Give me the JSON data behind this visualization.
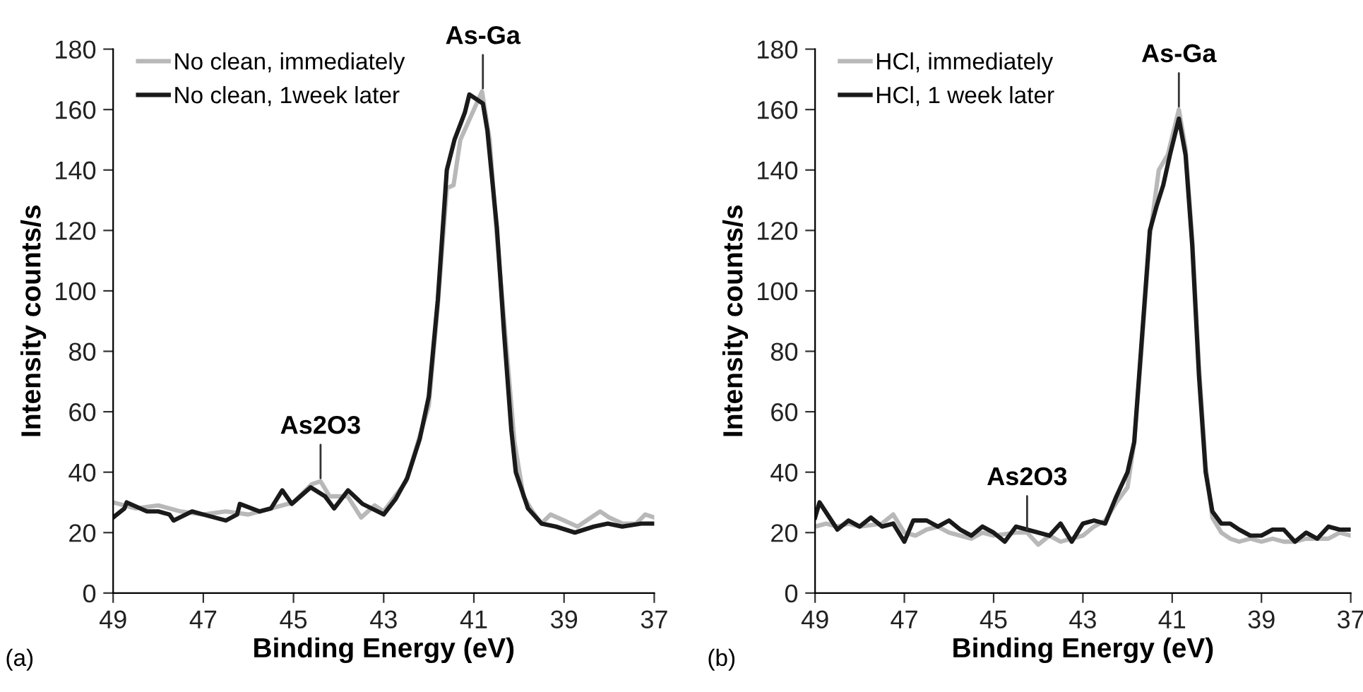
{
  "chart_data": [
    {
      "type": "line",
      "xlabel": "Binding Energy (eV)",
      "ylabel": "Intensity counts/s",
      "xlim": [
        49,
        37
      ],
      "xticks": [
        49,
        47,
        45,
        43,
        41,
        39,
        37
      ],
      "ylim": [
        0,
        180
      ],
      "yticks": [
        0,
        20,
        40,
        60,
        80,
        100,
        120,
        140,
        160,
        180
      ],
      "grid": false,
      "legend": "top left",
      "marker": "none",
      "line_style": "solid",
      "annotations": [
        {
          "text": "As-Ga",
          "x": 40.8,
          "y": 167
        },
        {
          "text": "As2O3",
          "x": 44.4,
          "y": 38
        },
        "(a)"
      ],
      "series": [
        {
          "name": "No clean, immediately",
          "color": "#b8b8b8",
          "x": [
            49,
            48.5,
            48,
            47.5,
            47,
            46.5,
            46,
            45.5,
            45,
            44.6,
            44.4,
            44.2,
            43.8,
            43.5,
            43.2,
            43.0,
            42.5,
            42.0,
            41.8,
            41.6,
            41.45,
            41.3,
            41.0,
            40.82,
            40.65,
            40.5,
            40.3,
            40.1,
            39.9,
            39.7,
            39.5,
            39.3,
            39.0,
            38.7,
            38.5,
            38.2,
            38.0,
            37.7,
            37.4,
            37.2,
            37.0
          ],
          "values": [
            30,
            28,
            29,
            27,
            26,
            27,
            26,
            28,
            30,
            36,
            37,
            32,
            32,
            25,
            29,
            27,
            37,
            62,
            95,
            134,
            135,
            150,
            160,
            166,
            150,
            120,
            85,
            50,
            32,
            27,
            23,
            26,
            24,
            22,
            24,
            27,
            25,
            23,
            23,
            26,
            25
          ]
        },
        {
          "name": "No clean, 1week later",
          "color": "#1a1a1a",
          "x": [
            49,
            48.75,
            48.7,
            48.25,
            48,
            47.75,
            47.66,
            47.25,
            47.0,
            46.75,
            46.5,
            46.25,
            46.19,
            45.75,
            45.5,
            45.25,
            45.04,
            44.62,
            44.3,
            44.1,
            43.79,
            43.47,
            43.0,
            42.74,
            42.48,
            42.2,
            42.0,
            41.8,
            41.6,
            41.43,
            41.2,
            41.1,
            40.8,
            40.7,
            40.49,
            40.33,
            40.17,
            40.07,
            39.8,
            39.5,
            39.18,
            38.76,
            38.34,
            38.03,
            37.71,
            37.29,
            37.0
          ],
          "values": [
            25,
            28,
            30,
            27,
            27,
            26,
            24,
            27,
            26,
            25,
            24,
            26,
            29.5,
            27,
            28,
            34,
            29.5,
            35,
            32,
            28,
            34,
            29.5,
            26,
            31,
            38,
            51,
            65,
            97,
            140,
            150,
            159,
            165,
            162,
            153,
            121,
            86,
            54,
            40,
            28,
            23,
            22,
            20,
            22,
            23,
            22,
            23,
            23
          ]
        }
      ]
    },
    {
      "type": "line",
      "xlabel": "Binding Energy (eV)",
      "ylabel": "Intensity counts/s",
      "xlim": [
        49,
        37
      ],
      "xticks": [
        49,
        47,
        45,
        43,
        41,
        39,
        37
      ],
      "ylim": [
        0,
        180
      ],
      "yticks": [
        0,
        20,
        40,
        60,
        80,
        100,
        120,
        140,
        160,
        180
      ],
      "grid": false,
      "legend": "top left",
      "marker": "none",
      "line_style": "solid",
      "annotations": [
        {
          "text": "As-Ga",
          "x": 40.85,
          "y": 161
        },
        {
          "text": "As2O3",
          "x": 44.25,
          "y": 21
        },
        "(b)"
      ],
      "series": [
        {
          "name": "HCl, immediately",
          "color": "#b8b8b8",
          "x": [
            49,
            48.75,
            48.5,
            48.25,
            48,
            47.5,
            47.25,
            47,
            46.75,
            46.5,
            46.25,
            46,
            45.75,
            45.5,
            45.25,
            45,
            44.5,
            44.25,
            44,
            43.75,
            43.5,
            43.25,
            43.0,
            42.75,
            42.5,
            42.25,
            42.0,
            41.85,
            41.7,
            41.5,
            41.3,
            41.1,
            40.85,
            40.7,
            40.55,
            40.4,
            40.25,
            40.1,
            39.9,
            39.7,
            39.5,
            39.25,
            39.0,
            38.75,
            38.5,
            38.25,
            38.0,
            37.75,
            37.5,
            37.25,
            37.0
          ],
          "values": [
            22,
            23,
            22,
            23,
            22,
            23,
            26,
            20,
            19,
            21,
            22,
            20,
            19,
            18,
            20,
            19,
            20,
            20,
            16,
            19,
            17,
            18,
            19,
            22,
            24,
            30,
            35,
            50,
            78,
            118,
            140,
            145,
            160,
            147,
            117,
            75,
            42,
            25,
            20,
            18,
            17,
            18,
            17,
            18,
            17,
            17,
            18,
            18,
            18,
            20,
            19
          ]
        },
        {
          "name": "HCl, 1 week later",
          "color": "#1a1a1a",
          "x": [
            49,
            48.9,
            48.5,
            48.25,
            48,
            47.75,
            47.5,
            47.25,
            47,
            46.8,
            46.5,
            46.25,
            46,
            45.75,
            45.5,
            45.25,
            45.0,
            44.75,
            44.5,
            44.25,
            44.0,
            43.75,
            43.5,
            43.25,
            43.0,
            42.75,
            42.5,
            42.25,
            42.0,
            41.85,
            41.7,
            41.5,
            41.35,
            41.2,
            41.05,
            40.85,
            40.7,
            40.55,
            40.4,
            40.25,
            40.1,
            39.9,
            39.7,
            39.5,
            39.25,
            39.0,
            38.75,
            38.5,
            38.25,
            38.0,
            37.75,
            37.5,
            37.25,
            37.0
          ],
          "values": [
            25,
            30,
            21,
            24,
            22,
            25,
            22,
            23,
            17,
            24,
            24,
            22,
            24,
            21,
            19,
            22,
            20,
            17,
            22,
            21,
            20,
            19,
            23,
            17,
            23,
            24,
            23,
            32,
            40,
            50,
            80,
            120,
            128,
            135,
            145,
            157,
            145,
            115,
            72,
            40,
            27,
            23,
            23,
            21,
            19,
            19,
            21,
            21,
            17,
            20,
            18,
            22,
            21,
            21
          ]
        }
      ]
    }
  ]
}
